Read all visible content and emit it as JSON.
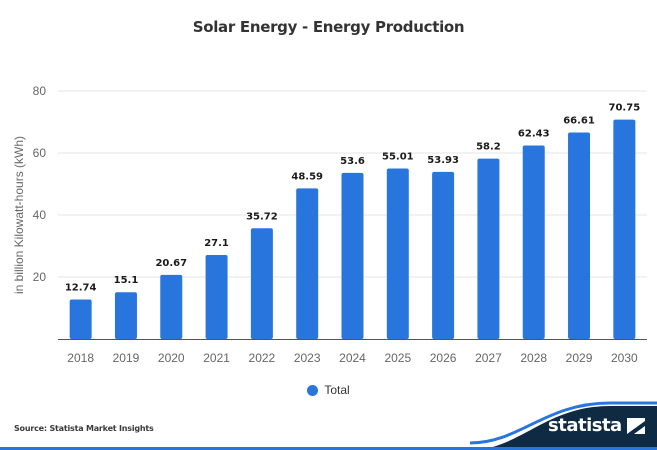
{
  "chart_data": {
    "type": "bar",
    "title": "Solar Energy - Energy Production",
    "xlabel": "",
    "ylabel": "in billion Kilowatt-hours (kWh)",
    "categories": [
      "2018",
      "2019",
      "2020",
      "2021",
      "2022",
      "2023",
      "2024",
      "2025",
      "2026",
      "2027",
      "2028",
      "2029",
      "2030"
    ],
    "series": [
      {
        "name": "Total",
        "color": "#2876dd",
        "values": [
          12.74,
          15.1,
          20.67,
          27.1,
          35.72,
          48.59,
          53.6,
          55.01,
          53.93,
          58.2,
          62.43,
          66.61,
          70.75
        ]
      }
    ],
    "data_labels": [
      "12.74",
      "15.1",
      "20.67",
      "27.1",
      "35.72",
      "48.59",
      "53.6",
      "55.01",
      "53.93",
      "58.2",
      "62.43",
      "66.61",
      "70.75"
    ],
    "ylim": [
      0,
      80
    ],
    "yticks": [
      20,
      40,
      60,
      80
    ],
    "ytick_labels": [
      "20",
      "40",
      "60",
      "80"
    ],
    "grid": true,
    "legend_position": "bottom-center"
  },
  "legend": {
    "label": "Total"
  },
  "footer": {
    "source": "Source: Statista Market Insights",
    "brand": "statista"
  },
  "colors": {
    "bar": "#2876dd",
    "footer_bg": "#0f2a43",
    "footer_accent": "#2876dd"
  }
}
